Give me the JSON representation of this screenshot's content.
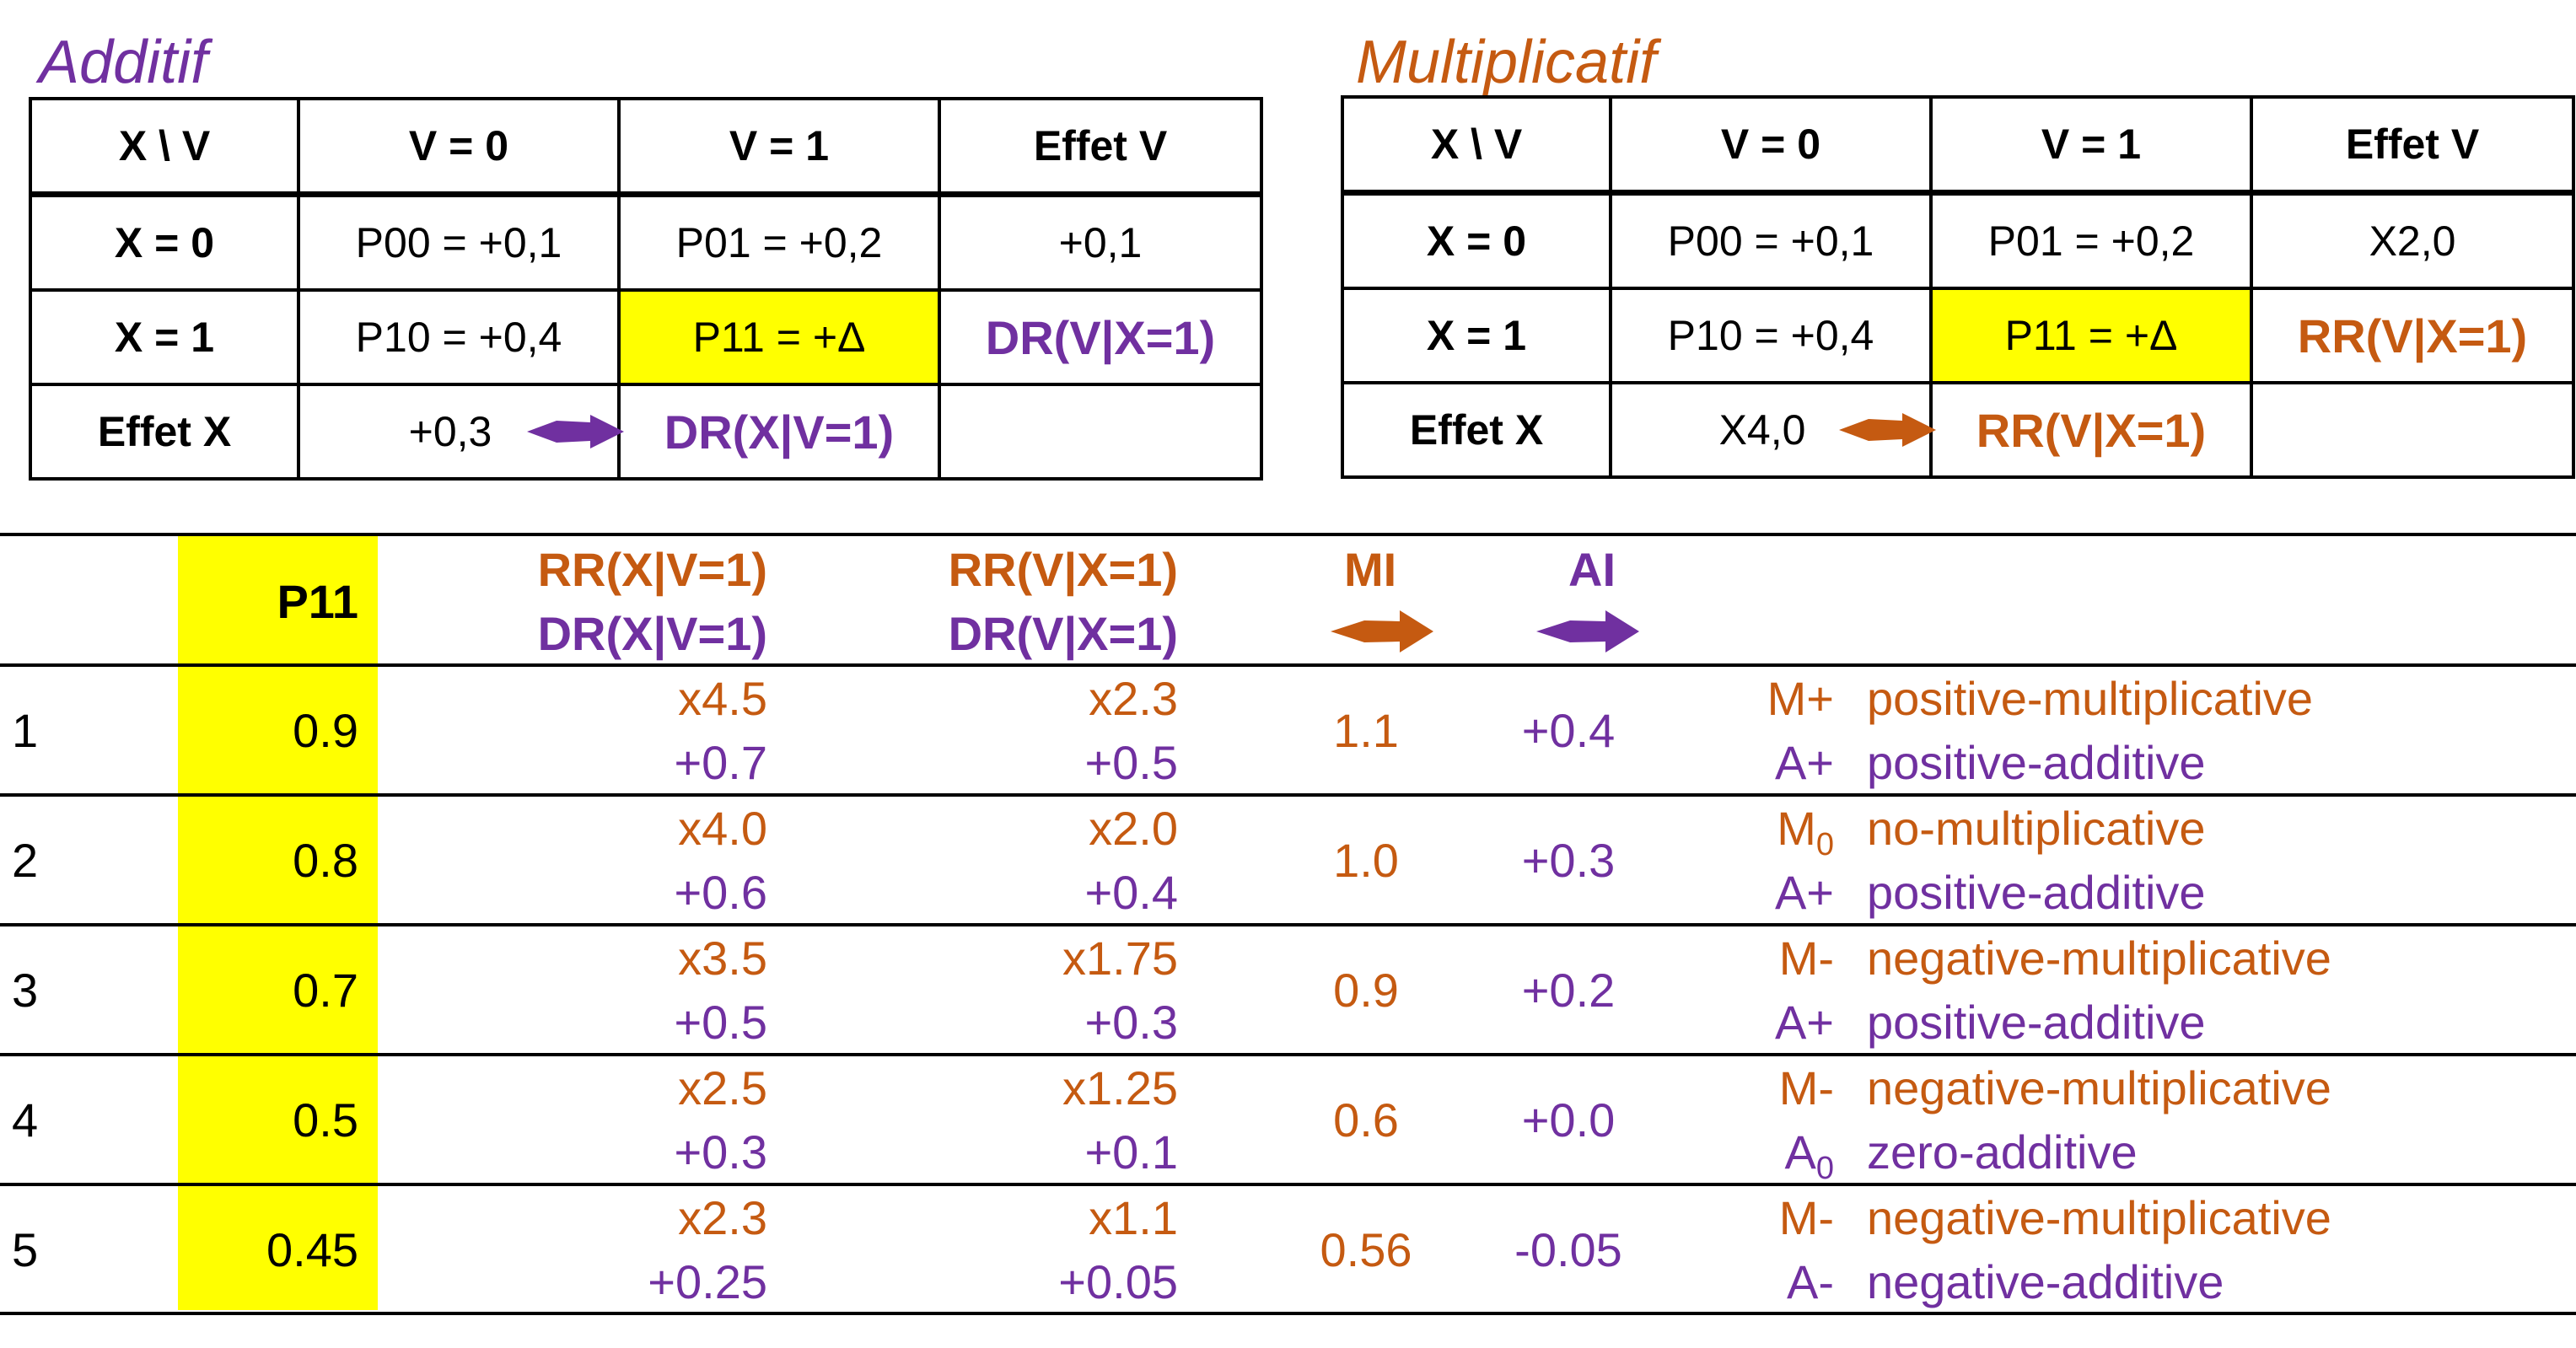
{
  "additif": {
    "title": "Additif",
    "header": [
      "X \\ V",
      "V = 0",
      "V = 1",
      "Effet V"
    ],
    "rows": [
      [
        "X = 0",
        "P00 = +0,1",
        "P01 = +0,2",
        "+0,1"
      ],
      [
        "X = 1",
        "P10 = +0,4",
        "P11 = +Δ",
        "DR(V|X=1)"
      ],
      [
        "Effet X",
        "+0,3",
        "DR(X|V=1)",
        ""
      ]
    ]
  },
  "multiplicatif": {
    "title": "Multiplicatif",
    "header": [
      "X \\ V",
      "V = 0",
      "V = 1",
      "Effet V"
    ],
    "rows": [
      [
        "X = 0",
        "P00 = +0,1",
        "P01 = +0,2",
        "X2,0"
      ],
      [
        "X = 1",
        "P10 = +0,4",
        "P11 = +Δ",
        "RR(V|X=1)"
      ],
      [
        "Effet X",
        "X4,0",
        "RR(V|X=1)",
        ""
      ]
    ]
  },
  "summary": {
    "headers": {
      "p11": "P11",
      "rr_x": "RR(X|V=1)",
      "dr_x": "DR(X|V=1)",
      "rr_v": "RR(V|X=1)",
      "dr_v": "DR(V|X=1)",
      "mi": "MI",
      "ai": "AI"
    },
    "rows": [
      {
        "n": "1",
        "p11": "0.9",
        "rr_x": "x4.5",
        "dr_x": "+0.7",
        "rr_v": "x2.3",
        "dr_v": "+0.5",
        "mi": "1.1",
        "ai": "+0.4",
        "m_code": "M+",
        "m_sub": "",
        "m_label": "positive-multiplicative",
        "a_code": "A+",
        "a_sub": "",
        "a_label": "positive-additive"
      },
      {
        "n": "2",
        "p11": "0.8",
        "rr_x": "x4.0",
        "dr_x": "+0.6",
        "rr_v": "x2.0",
        "dr_v": "+0.4",
        "mi": "1.0",
        "ai": "+0.3",
        "m_code": "M",
        "m_sub": "0",
        "m_label": "no-multiplicative",
        "a_code": "A+",
        "a_sub": "",
        "a_label": "positive-additive"
      },
      {
        "n": "3",
        "p11": "0.7",
        "rr_x": "x3.5",
        "dr_x": "+0.5",
        "rr_v": "x1.75",
        "dr_v": "+0.3",
        "mi": "0.9",
        "ai": "+0.2",
        "m_code": "M-",
        "m_sub": "",
        "m_label": "negative-multiplicative",
        "a_code": "A+",
        "a_sub": "",
        "a_label": "positive-additive"
      },
      {
        "n": "4",
        "p11": "0.5",
        "rr_x": "x2.5",
        "dr_x": "+0.3",
        "rr_v": "x1.25",
        "dr_v": "+0.1",
        "mi": "0.6",
        "ai": "+0.0",
        "m_code": "M-",
        "m_sub": "",
        "m_label": "negative-multiplicative",
        "a_code": "A",
        "a_sub": "0",
        "a_label": "zero-additive"
      },
      {
        "n": "5",
        "p11": "0.45",
        "rr_x": "x2.3",
        "dr_x": "+0.25",
        "rr_v": "x1.1",
        "dr_v": "+0.05",
        "mi": "0.56",
        "ai": "-0.05",
        "m_code": "M-",
        "m_sub": "",
        "m_label": "negative-multiplicative",
        "a_code": "A-",
        "a_sub": "",
        "a_label": "negative-additive"
      }
    ]
  },
  "colors": {
    "purple": "#7030A0",
    "orange": "#C55A11",
    "highlight": "#FFFF00"
  }
}
